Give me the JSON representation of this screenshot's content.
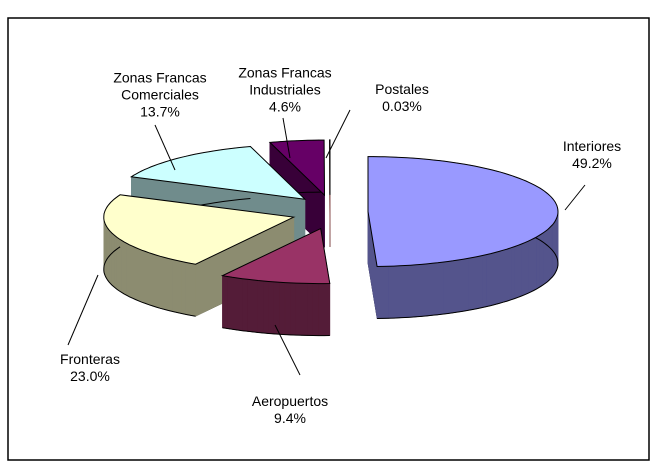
{
  "chart_data": {
    "type": "pie3d",
    "categories": [
      "Interiores",
      "Aeropuertos",
      "Fronteras",
      "Zonas Francas Comerciales",
      "Zonas Francas Industriales",
      "Postales"
    ],
    "values": [
      49.2,
      9.4,
      23.0,
      13.7,
      4.6,
      0.03
    ],
    "value_labels": [
      "49.2%",
      "9.4%",
      "23.0%",
      "13.7%",
      "4.6%",
      "0.03%"
    ],
    "colors": [
      "#9999ff",
      "#993366",
      "#ffffcc",
      "#ccffff",
      "#660066",
      "#ff8080"
    ]
  }
}
